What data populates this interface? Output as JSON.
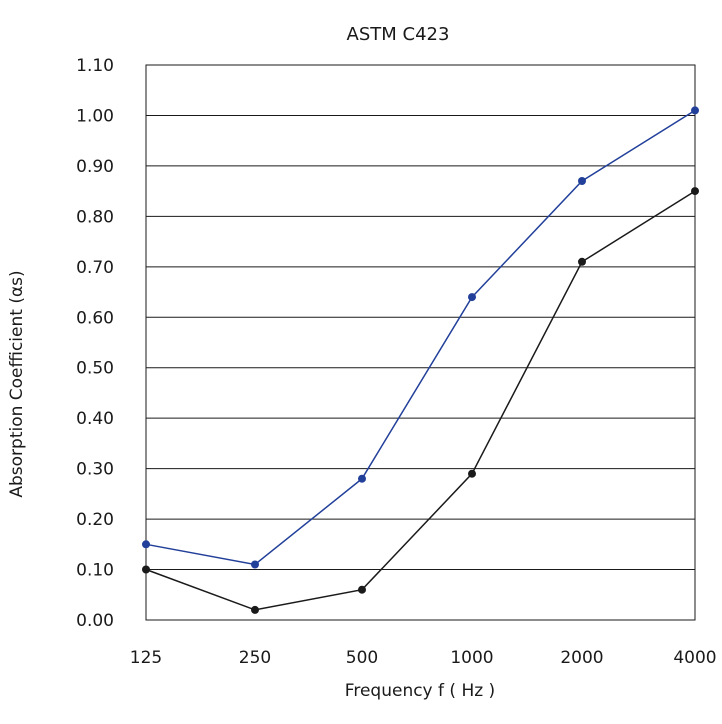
{
  "chart_data": {
    "type": "line",
    "title": "ASTM C423",
    "xlabel": "Frequency f  ( Hz )",
    "ylabel": "Absorption Coefficient (αs)",
    "categories": [
      "125",
      "250",
      "500",
      "1000",
      "2000",
      "4000"
    ],
    "y_ticks": [
      "0.00",
      "0.10",
      "0.20",
      "0.30",
      "0.40",
      "0.50",
      "0.60",
      "0.70",
      "0.80",
      "0.90",
      "1.00",
      "1.10"
    ],
    "ylim": [
      0,
      1.1
    ],
    "grid": "horizontal",
    "series": [
      {
        "color": "#22409a",
        "values": [
          0.15,
          0.11,
          0.28,
          0.64,
          0.87,
          1.01
        ]
      },
      {
        "color": "#1a1a1a",
        "values": [
          0.1,
          0.02,
          0.06,
          0.29,
          0.71,
          0.85
        ]
      }
    ]
  }
}
